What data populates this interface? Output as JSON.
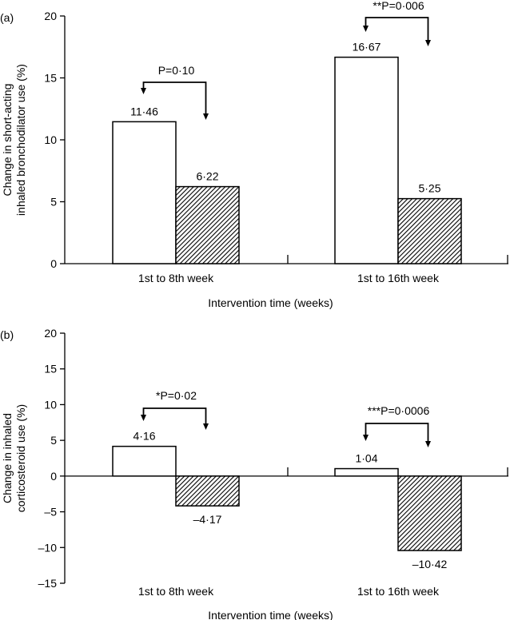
{
  "chart_data": [
    {
      "type": "bar",
      "panel_label": "(a)",
      "ylabel": [
        "Change in short-acting",
        "inhaled bronchodilator use (%)"
      ],
      "xlabel": "Intervention time (weeks)",
      "categories": [
        "1st to 8th week",
        "1st to 16th week"
      ],
      "ylim": [
        0,
        20
      ],
      "yticks": [
        0,
        5,
        10,
        15,
        20
      ],
      "series": [
        {
          "style": "open",
          "values": [
            11.46,
            16.67
          ],
          "labels": [
            "11·46",
            "16·67"
          ]
        },
        {
          "style": "hatched",
          "values": [
            6.22,
            5.25
          ],
          "labels": [
            "6·22",
            "5·25"
          ]
        }
      ],
      "annotations": [
        {
          "category": 0,
          "prefix": "",
          "text": "P=0·10"
        },
        {
          "category": 1,
          "prefix": "**",
          "text": "P=0·006"
        }
      ],
      "grid": false
    },
    {
      "type": "bar",
      "panel_label": "(b)",
      "ylabel": [
        "Change in inhaled",
        "corticosteroid use (%)"
      ],
      "xlabel": "Intervention time (weeks)",
      "categories": [
        "1st to 8th week",
        "1st to 16th week"
      ],
      "ylim": [
        -15,
        20
      ],
      "yticks": [
        -15,
        -10,
        -5,
        0,
        5,
        10,
        15,
        20
      ],
      "ytick_labels": [
        "–15",
        "–10",
        "–5",
        "0",
        "5",
        "10",
        "15",
        "20"
      ],
      "series": [
        {
          "style": "open",
          "values": [
            4.16,
            1.04
          ],
          "labels": [
            "4·16",
            "1·04"
          ]
        },
        {
          "style": "hatched",
          "values": [
            -4.17,
            -10.42
          ],
          "labels": [
            "–4·17",
            "–10·42"
          ]
        }
      ],
      "annotations": [
        {
          "category": 0,
          "prefix": "*",
          "text": "P=0·02"
        },
        {
          "category": 1,
          "prefix": "***",
          "text": "P=0·0006"
        }
      ],
      "grid": false
    }
  ],
  "colors": {
    "bar_open": "#ffffff",
    "bar_hatched": "#000000",
    "axis": "#000000"
  }
}
